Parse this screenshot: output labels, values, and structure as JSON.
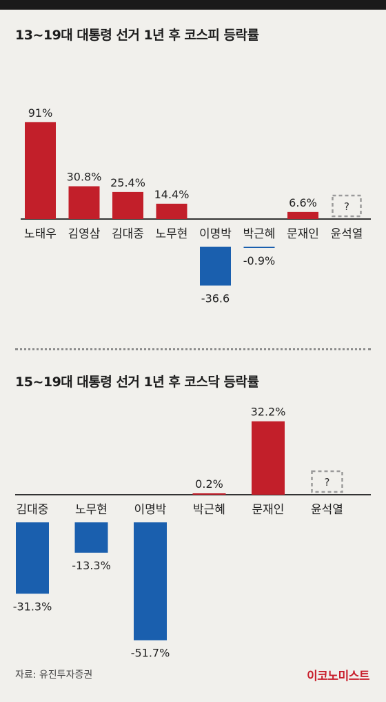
{
  "chart_data": [
    {
      "type": "bar",
      "title": "13~19대 대통령 선거 1년 후 코스피 등락률",
      "categories": [
        "노태우",
        "김영삼",
        "김대중",
        "노무현",
        "이명박",
        "박근혜",
        "문재인",
        "윤석열"
      ],
      "values": [
        91,
        30.8,
        25.4,
        14.4,
        -36.6,
        -0.9,
        6.6,
        null
      ],
      "value_labels": [
        "91%",
        "30.8%",
        "25.4%",
        "14.4%",
        "-36.6",
        "-0.9%",
        "6.6%",
        "?"
      ],
      "ylim": [
        -40,
        95
      ],
      "positive_color": "#c21f2a",
      "negative_color": "#1a5fae",
      "unknown_color": "#9a9a9a"
    },
    {
      "type": "bar",
      "title": "15~19대 대통령 선거 1년 후 코스닥 등락률",
      "categories": [
        "김대중",
        "노무현",
        "이명박",
        "박근혜",
        "문재인",
        "윤석열"
      ],
      "values": [
        -31.3,
        -13.3,
        -51.7,
        0.2,
        32.2,
        null
      ],
      "value_labels": [
        "-31.3%",
        "-13.3%",
        "-51.7%",
        "0.2%",
        "32.2%",
        "?"
      ],
      "ylim": [
        -55,
        35
      ],
      "positive_color": "#c21f2a",
      "negative_color": "#1a5fae",
      "unknown_color": "#9a9a9a"
    }
  ],
  "footer": {
    "source": "자료: 유진투자증권",
    "logo": "이코노미스트"
  }
}
